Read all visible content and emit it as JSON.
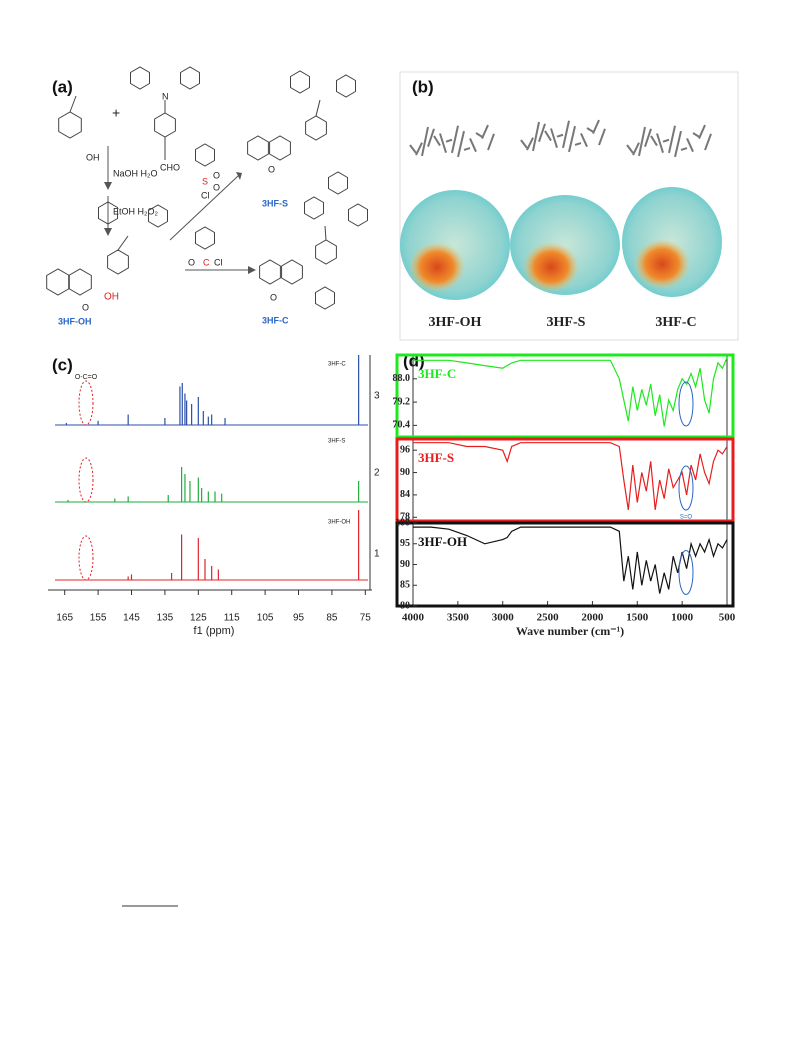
{
  "scheme": {
    "label": "(a)",
    "plus": "+",
    "start_oh": "OH",
    "aldehyde": "CHO",
    "amine_n": "N",
    "step1": "NaOH H₂O",
    "step2": "EtOH H₂O₂",
    "sulfonyl": {
      "s": "S",
      "o1": "O",
      "o2": "O",
      "cl": "Cl"
    },
    "acyl": {
      "o": "O",
      "c": "C",
      "cl": "Cl"
    },
    "products": {
      "oh": {
        "name": "3HF-OH",
        "oh": "OH",
        "o": "O"
      },
      "s": {
        "name": "3HF-S",
        "o": "O"
      },
      "c": {
        "name": "3HF-C",
        "o": "O"
      }
    }
  },
  "models": {
    "label": "(b)",
    "names": [
      "3HF-OH",
      "3HF-S",
      "3HF-C"
    ]
  },
  "chart_data": [
    {
      "type": "nmr",
      "label": "(c)",
      "xlabel": "f1 (ppm)",
      "xlim": [
        170,
        73
      ],
      "xticks": [
        165,
        155,
        145,
        135,
        125,
        115,
        105,
        95,
        85,
        75
      ],
      "annotation": "O-C=O",
      "series": [
        {
          "name": "3HF-C",
          "number": "3",
          "color": "#2a4fa8",
          "x": [
            164.5,
            155,
            146,
            135,
            130.5,
            129.8,
            129,
            128.5,
            127,
            125,
            123.5,
            122,
            121,
            117,
            77
          ],
          "values": [
            0.03,
            0.06,
            0.15,
            0.1,
            0.55,
            0.6,
            0.45,
            0.35,
            0.3,
            0.4,
            0.2,
            0.12,
            0.15,
            0.1,
            1.0
          ]
        },
        {
          "name": "3HF-S",
          "number": "2",
          "color": "#1fae3c",
          "x": [
            164,
            150,
            146,
            134,
            130,
            129,
            127.5,
            125,
            124,
            122,
            120,
            118,
            77
          ],
          "values": [
            0.03,
            0.05,
            0.08,
            0.1,
            0.5,
            0.4,
            0.3,
            0.35,
            0.2,
            0.15,
            0.15,
            0.12,
            0.3
          ]
        },
        {
          "name": "3HF-OH",
          "number": "1",
          "color": "#e0242a",
          "x": [
            146,
            145,
            133,
            130,
            125,
            123,
            121,
            119,
            77
          ],
          "values": [
            0.05,
            0.08,
            0.1,
            0.65,
            0.6,
            0.3,
            0.2,
            0.15,
            1.0
          ]
        }
      ]
    },
    {
      "type": "line",
      "label": "(d)",
      "xlabel": "Wave number (cm⁻¹)",
      "xlim": [
        4000,
        500
      ],
      "xticks": [
        4000,
        3500,
        3000,
        2500,
        2000,
        1500,
        1000,
        500
      ],
      "annotation": "S=O",
      "x": [
        4000,
        3800,
        3600,
        3400,
        3200,
        3000,
        2950,
        2900,
        2800,
        2600,
        2400,
        2200,
        2000,
        1800,
        1700,
        1650,
        1600,
        1550,
        1500,
        1450,
        1400,
        1350,
        1300,
        1250,
        1200,
        1150,
        1100,
        1050,
        1000,
        950,
        900,
        850,
        800,
        750,
        700,
        650,
        600,
        550,
        500
      ],
      "series": [
        {
          "name": "3HF-C",
          "color": "#1ee81e",
          "ylim": [
            66,
            97
          ],
          "yticks": [
            70.4,
            79.2,
            {
              "value": 88,
              "label": "88.0"
            }
          ],
          "values": [
            95,
            95,
            95,
            94,
            93,
            92,
            93,
            94,
            95,
            95,
            95,
            95,
            95,
            95,
            88,
            80,
            72,
            85,
            76,
            84,
            78,
            86,
            74,
            82,
            70,
            80,
            76,
            84,
            88,
            86,
            90,
            85,
            92,
            80,
            75,
            88,
            94,
            92,
            96
          ]
        },
        {
          "name": "3HF-S",
          "color": "#e81e1e",
          "ylim": [
            77,
            99
          ],
          "yticks": [
            78,
            84,
            90,
            96
          ],
          "values": [
            98,
            98,
            98,
            97,
            97,
            96,
            93,
            97,
            98,
            98,
            98,
            98,
            98,
            98,
            97,
            88,
            80,
            92,
            82,
            90,
            85,
            93,
            80,
            88,
            83,
            91,
            86,
            88,
            90,
            84,
            92,
            88,
            95,
            90,
            87,
            93,
            96,
            95,
            97
          ]
        },
        {
          "name": "3HF-OH",
          "color": "#111111",
          "ylim": [
            80,
            100
          ],
          "yticks": [
            80,
            85,
            90,
            95,
            100
          ],
          "values": [
            99,
            99,
            98.5,
            97,
            95,
            96,
            96.5,
            98,
            99,
            99,
            99,
            99,
            99,
            99,
            98,
            86,
            92,
            84,
            93,
            85,
            91,
            86,
            90,
            83,
            88,
            84,
            92,
            88,
            93,
            89,
            95,
            92,
            95,
            93,
            96,
            92,
            95,
            94,
            96
          ]
        }
      ]
    }
  ]
}
